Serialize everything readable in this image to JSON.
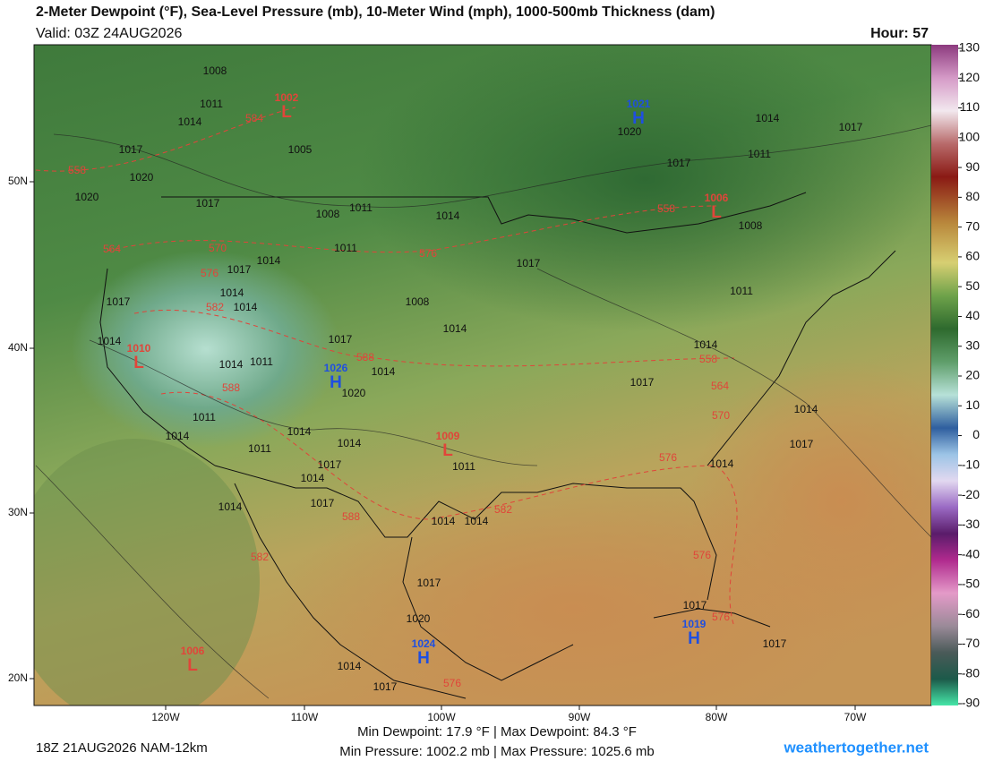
{
  "header": {
    "title": "2-Meter Dewpoint (°F), Sea-Level Pressure (mb), 10-Meter Wind (mph), 1000-500mb Thickness (dam)",
    "valid": "Valid: 03Z 24AUG2026",
    "hour": "Hour: 57"
  },
  "colorbar": {
    "ticks": [
      130,
      120,
      110,
      100,
      90,
      80,
      70,
      60,
      50,
      40,
      30,
      20,
      10,
      0,
      -10,
      -20,
      -30,
      -40,
      -50,
      -60,
      -70,
      -80,
      -90
    ]
  },
  "axes": {
    "longitudes": [
      "120W",
      "110W",
      "100W",
      "90W",
      "80W",
      "70W"
    ],
    "latitudes": [
      "50N",
      "40N",
      "30N",
      "20N"
    ]
  },
  "map": {
    "centers": [
      {
        "symbol": "L",
        "pressure": "1002"
      },
      {
        "symbol": "H",
        "pressure": "1021"
      },
      {
        "symbol": "L",
        "pressure": "1006"
      },
      {
        "symbol": "L",
        "pressure": "1010"
      },
      {
        "symbol": "H",
        "pressure": "1026"
      },
      {
        "symbol": "L",
        "pressure": "1009"
      },
      {
        "symbol": "H",
        "pressure": "1024"
      },
      {
        "symbol": "H",
        "pressure": "1019"
      },
      {
        "symbol": "L",
        "pressure": "1006"
      }
    ],
    "isobar_labels": [
      "1008",
      "1011",
      "1014",
      "1017",
      "1020",
      "1020",
      "1005",
      "1017",
      "1008",
      "1011",
      "1014",
      "1011",
      "1014",
      "1017",
      "1014",
      "1014",
      "1017",
      "1008",
      "1014",
      "1014",
      "1017",
      "1014",
      "1011",
      "1014",
      "1020",
      "1011",
      "1014",
      "1011",
      "1014",
      "1014",
      "1017",
      "1014",
      "1017",
      "1014",
      "1011",
      "1014",
      "1014",
      "1017",
      "1020",
      "1014",
      "1017",
      "1017",
      "1017",
      "1020",
      "1014",
      "1011",
      "1017",
      "1008",
      "1011",
      "1014",
      "1017",
      "1014",
      "1017",
      "1014",
      "1017",
      "1017"
    ],
    "thickness_labels": [
      "584",
      "558",
      "564",
      "570",
      "576",
      "582",
      "576",
      "588",
      "588",
      "558",
      "558",
      "564",
      "570",
      "576",
      "582",
      "588",
      "582",
      "576",
      "576",
      "576"
    ]
  },
  "footer": {
    "run": "18Z 21AUG2026 NAM-12km",
    "dewpoint_range": "Min Dewpoint:  17.9 °F | Max Dewpoint:  84.3 °F",
    "pressure_range": "Min Pressure: 1002.2 mb | Max Pressure: 1025.6 mb",
    "site": "weathertogether.net"
  }
}
